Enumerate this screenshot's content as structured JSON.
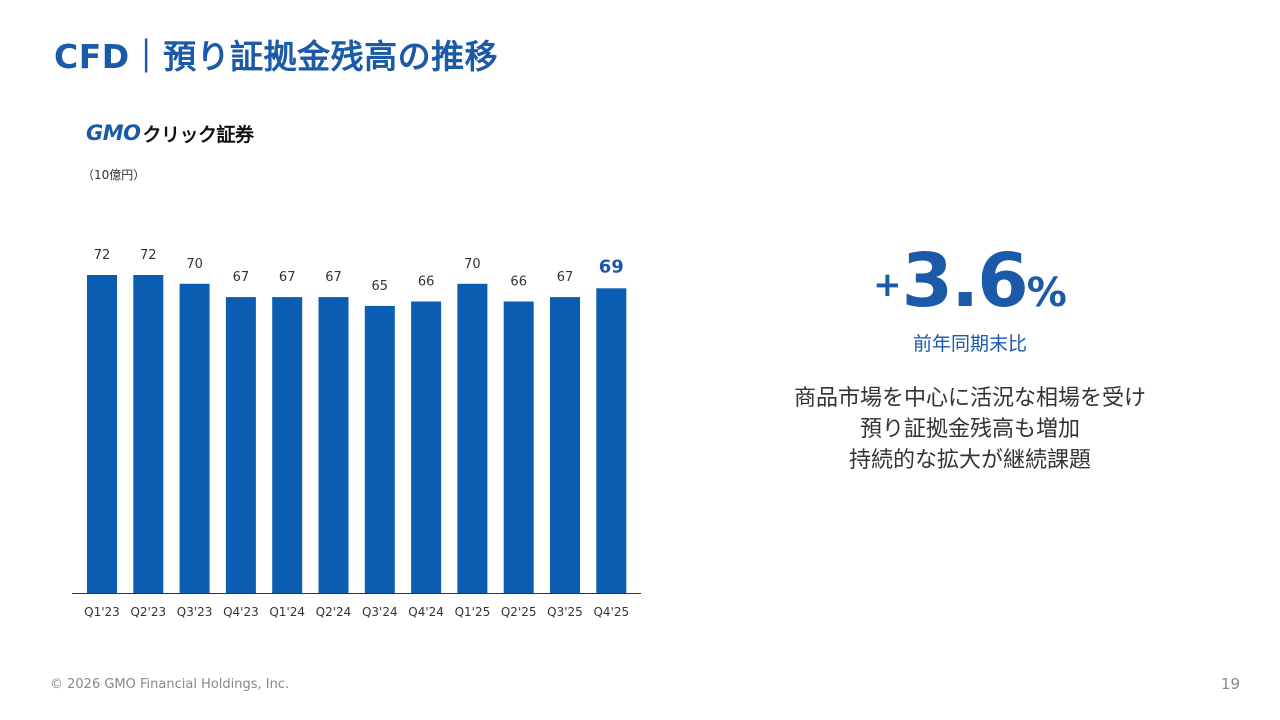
{
  "slide": {
    "title": "CFD｜預り証拠金残高の推移",
    "logo": {
      "gmo": "GMO",
      "rest": "クリック証券"
    },
    "unit": "（10億円）",
    "kpi": {
      "sign": "+",
      "value": "3.6",
      "suffix": "%",
      "label": "前年同期末比"
    },
    "description": [
      "商品市場を中心に活況な相場を受け",
      "預り証拠金残高も増加",
      "持続的な拡大が継続課題"
    ],
    "footer": "© 2026 GMO Financial Holdings, Inc.",
    "page_number": "19"
  },
  "colors": {
    "bar": "#0a5db0",
    "title": "#1a5aa8",
    "highlight_label": "#1a5aa8",
    "label": "#333333",
    "axis": "#333333"
  },
  "chart_data": {
    "type": "bar",
    "title": "",
    "ylabel": "（10億円）",
    "xlabel": "",
    "categories": [
      "Q1'23",
      "Q2'23",
      "Q3'23",
      "Q4'23",
      "Q1'24",
      "Q2'24",
      "Q3'24",
      "Q4'24",
      "Q1'25",
      "Q2'25",
      "Q3'25",
      "Q4'25"
    ],
    "values": [
      72,
      72,
      70,
      67,
      67,
      67,
      65,
      66,
      70,
      66,
      67,
      69
    ],
    "highlight_index": 11,
    "ylim": [
      0,
      72
    ],
    "grid": false
  }
}
